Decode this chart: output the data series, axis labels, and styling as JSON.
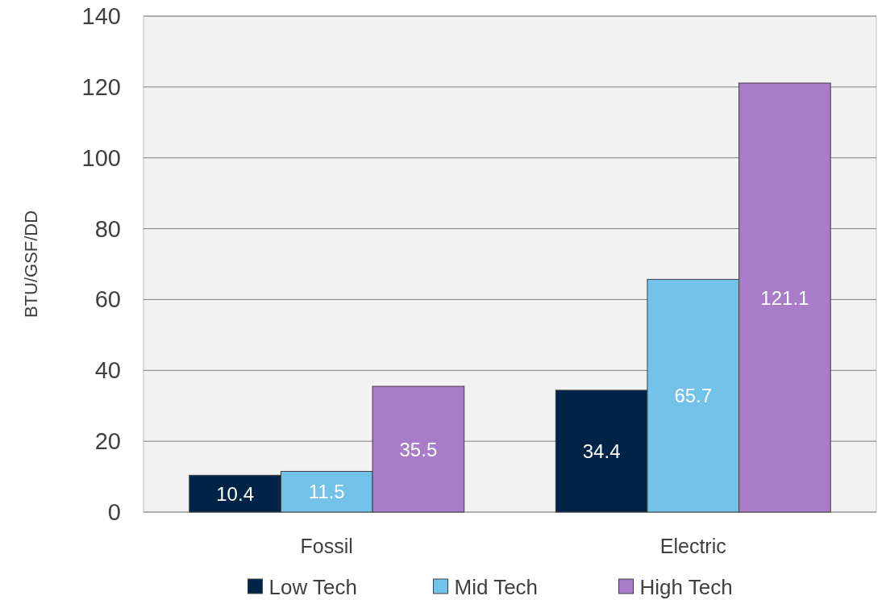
{
  "chart_data": {
    "type": "bar",
    "ylabel": "BTU/GSF/DD",
    "categories": [
      "Fossil",
      "Electric"
    ],
    "series": [
      {
        "name": "Low Tech",
        "color": "#002447",
        "values": [
          10.4,
          34.4
        ]
      },
      {
        "name": "Mid Tech",
        "color": "#73c2e9",
        "values": [
          11.5,
          65.7
        ]
      },
      {
        "name": "High Tech",
        "color": "#a97cca",
        "values": [
          35.5,
          121.1
        ]
      }
    ],
    "ylim": [
      0,
      140
    ],
    "yticks": [
      0,
      20,
      40,
      60,
      80,
      100,
      120,
      140
    ],
    "grid": "y",
    "legend": "bottom",
    "data_labels": true
  }
}
